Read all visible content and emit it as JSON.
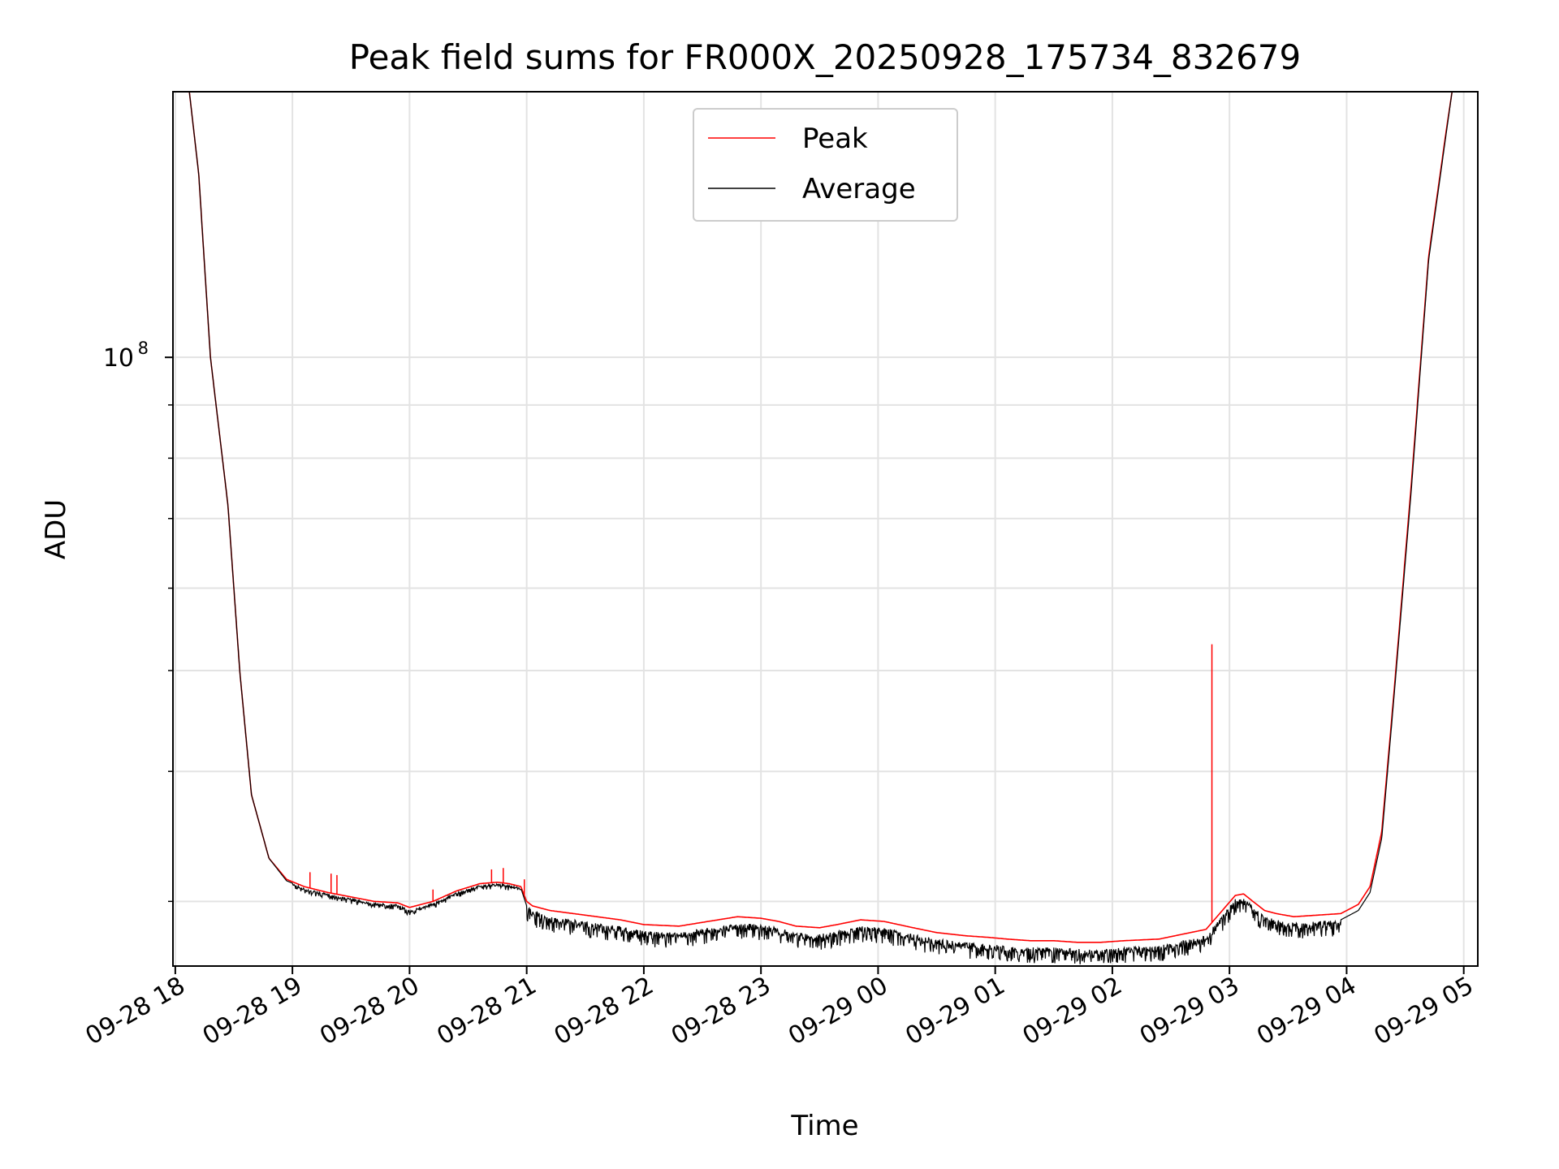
{
  "chart_data": {
    "type": "line",
    "title": "Peak field sums for FR000X_20250928_175734_832679",
    "xlabel": "Time",
    "ylabel": "ADU",
    "yscale": "log",
    "grid": true,
    "legend_position": "top-center",
    "x_unit": "hours since 09-28 18:00",
    "xlim": [
      -0.02,
      11.12
    ],
    "ylim": [
      26000000,
      180000000
    ],
    "x_ticks": [
      {
        "value": 0,
        "label": "09-28 18"
      },
      {
        "value": 1,
        "label": "09-28 19"
      },
      {
        "value": 2,
        "label": "09-28 20"
      },
      {
        "value": 3,
        "label": "09-28 21"
      },
      {
        "value": 4,
        "label": "09-28 22"
      },
      {
        "value": 5,
        "label": "09-28 23"
      },
      {
        "value": 6,
        "label": "09-29 00"
      },
      {
        "value": 7,
        "label": "09-29 01"
      },
      {
        "value": 8,
        "label": "09-29 02"
      },
      {
        "value": 9,
        "label": "09-29 03"
      },
      {
        "value": 10,
        "label": "09-29 04"
      },
      {
        "value": 11,
        "label": "09-29 05"
      }
    ],
    "y_major_ticks": [
      {
        "value": 100000000,
        "base": "10",
        "exp": "8"
      }
    ],
    "y_minor_ticks": [
      30000000,
      40000000,
      50000000,
      60000000,
      70000000,
      80000000,
      90000000,
      200000000
    ],
    "series": [
      {
        "name": "Peak",
        "color": "#ff0000",
        "x": [
          0.12,
          0.2,
          0.3,
          0.45,
          0.55,
          0.65,
          0.8,
          0.95,
          1.1,
          1.3,
          1.5,
          1.7,
          1.9,
          2.0,
          2.2,
          2.4,
          2.6,
          2.75,
          2.85,
          2.95,
          3.0,
          3.05,
          3.2,
          3.5,
          3.8,
          4.0,
          4.3,
          4.55,
          4.8,
          5.0,
          5.15,
          5.3,
          5.5,
          5.65,
          5.85,
          6.05,
          6.3,
          6.5,
          6.75,
          6.95,
          7.1,
          7.3,
          7.5,
          7.7,
          7.9,
          8.1,
          8.4,
          8.6,
          8.8,
          8.95,
          9.05,
          9.12,
          9.2,
          9.3,
          9.4,
          9.55,
          9.75,
          9.95,
          10.1,
          10.2,
          10.3,
          10.4,
          10.55,
          10.7,
          10.85,
          10.9
        ],
        "y": [
          180000000,
          150000000,
          100000000,
          72000000,
          50000000,
          38000000,
          33000000,
          31500000,
          31000000,
          30600000,
          30300000,
          30000000,
          29900000,
          29600000,
          30000000,
          30700000,
          31200000,
          31300000,
          31200000,
          31000000,
          30000000,
          29700000,
          29400000,
          29100000,
          28800000,
          28500000,
          28400000,
          28700000,
          29000000,
          28900000,
          28700000,
          28400000,
          28300000,
          28500000,
          28800000,
          28700000,
          28300000,
          28000000,
          27800000,
          27700000,
          27600000,
          27500000,
          27500000,
          27400000,
          27400000,
          27500000,
          27600000,
          27900000,
          28200000,
          29500000,
          30400000,
          30500000,
          30000000,
          29400000,
          29200000,
          29000000,
          29100000,
          29200000,
          29800000,
          31000000,
          35000000,
          47000000,
          75000000,
          125000000,
          165000000,
          180000000
        ]
      },
      {
        "name": "Average",
        "color": "#000000",
        "x": [
          0.12,
          0.2,
          0.3,
          0.45,
          0.55,
          0.65,
          0.8,
          0.95,
          1.1,
          1.3,
          1.5,
          1.7,
          1.9,
          2.0,
          2.2,
          2.4,
          2.6,
          2.75,
          2.85,
          2.95,
          3.0,
          3.05,
          3.2,
          3.5,
          3.8,
          4.0,
          4.3,
          4.55,
          4.8,
          5.0,
          5.15,
          5.3,
          5.5,
          5.65,
          5.85,
          6.05,
          6.3,
          6.5,
          6.75,
          6.95,
          7.1,
          7.3,
          7.5,
          7.7,
          7.9,
          8.1,
          8.4,
          8.6,
          8.8,
          8.95,
          9.05,
          9.12,
          9.2,
          9.3,
          9.4,
          9.55,
          9.75,
          9.95,
          10.1,
          10.2,
          10.3,
          10.4,
          10.55,
          10.7,
          10.85,
          10.9
        ],
        "y": [
          180000000,
          150000000,
          100000000,
          72000000,
          50000000,
          38000000,
          33000000,
          31400000,
          30900000,
          30500000,
          30200000,
          29900000,
          29800000,
          29400000,
          29900000,
          30600000,
          31100000,
          31200000,
          31100000,
          30900000,
          29700000,
          29400000,
          29000000,
          28700000,
          28400000,
          28100000,
          28000000,
          28300000,
          28600000,
          28500000,
          28300000,
          28000000,
          27900000,
          28100000,
          28400000,
          28300000,
          27900000,
          27600000,
          27400000,
          27300000,
          27200000,
          27100000,
          27100000,
          27000000,
          27000000,
          27100000,
          27200000,
          27500000,
          27800000,
          29200000,
          30200000,
          30300000,
          29700000,
          29000000,
          28800000,
          28600000,
          28700000,
          28800000,
          29400000,
          30600000,
          34500000,
          46500000,
          74000000,
          124000000,
          164000000,
          180000000
        ]
      }
    ],
    "noise_bands": [
      {
        "series": "Average",
        "x_start": 3.0,
        "x_end": 9.95,
        "depth_fraction": 0.035
      },
      {
        "series": "Average",
        "x_start": 1.0,
        "x_end": 2.95,
        "depth_fraction": 0.012
      }
    ],
    "spikes": [
      {
        "series": "Peak",
        "x": 1.15,
        "y": 32000000
      },
      {
        "series": "Peak",
        "x": 1.33,
        "y": 31900000
      },
      {
        "series": "Peak",
        "x": 1.38,
        "y": 31800000
      },
      {
        "series": "Peak",
        "x": 2.2,
        "y": 30800000
      },
      {
        "series": "Peak",
        "x": 2.7,
        "y": 32200000
      },
      {
        "series": "Peak",
        "x": 2.8,
        "y": 32300000
      },
      {
        "series": "Peak",
        "x": 2.98,
        "y": 31500000
      },
      {
        "series": "Peak",
        "x": 8.85,
        "y": 53000000
      }
    ]
  },
  "legend": {
    "entries": [
      {
        "label": "Peak",
        "color": "#ff0000"
      },
      {
        "label": "Average",
        "color": "#000000"
      }
    ]
  }
}
